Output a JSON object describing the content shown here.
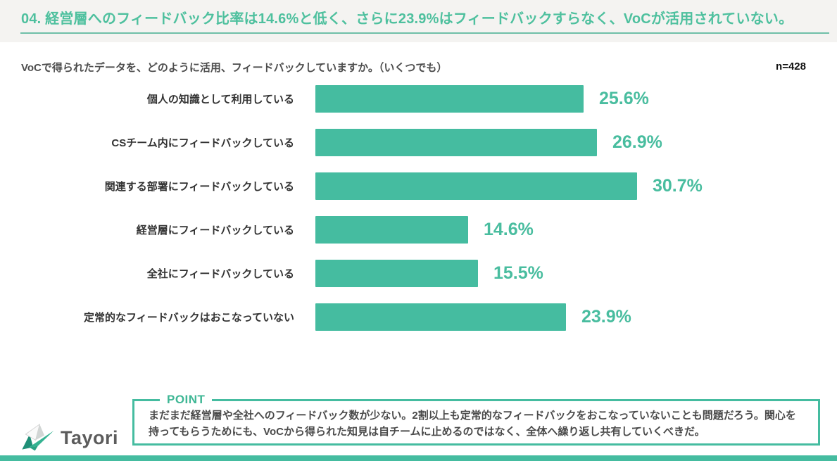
{
  "accent_color": "#45bca0",
  "header": {
    "title": "04. 経営層へのフィードバック比率は14.6%と低く、さらに23.9%はフィードバックすらなく、VoCが活用されていない。"
  },
  "survey": {
    "question": "VoCで得られたデータを、どのように活用、フィードバックしていますか。（いくつでも）",
    "sample_size": "n=428"
  },
  "chart_data": {
    "type": "bar",
    "orientation": "horizontal",
    "title": "",
    "xlabel": "",
    "ylabel": "",
    "xlim": [
      0,
      33
    ],
    "grid": false,
    "legend": false,
    "bar_color": "#45bca0",
    "categories": [
      "個人の知識として利用している",
      "CSチーム内にフィードバックしている",
      "関連する部署にフィードバックしている",
      "経営層にフィードバックしている",
      "全社にフィードバックしている",
      "定常的なフィードバックはおこなっていない"
    ],
    "values": [
      25.6,
      26.9,
      30.7,
      14.6,
      15.5,
      23.9
    ],
    "value_labels": [
      "25.6%",
      "26.9%",
      "30.7%",
      "14.6%",
      "15.5%",
      "23.9%"
    ]
  },
  "point": {
    "label": "POINT",
    "text": "まだまだ経営層や全社へのフィードバック数が少ない。2割以上も定常的なフィードバックをおこなっていないことも問題だろう。関心を持ってもらうためにも、VoCから得られた知見は自チームに止めるのではなく、全体へ繰り返し共有していくべきだ。"
  },
  "footer": {
    "logo_text": "Tayori"
  }
}
